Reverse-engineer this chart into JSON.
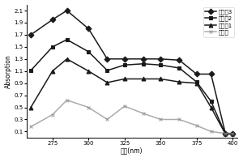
{
  "x": [
    260,
    275,
    285,
    300,
    313,
    325,
    338,
    350,
    363,
    375,
    385,
    395,
    400
  ],
  "series": {
    "实施例3": [
      1.7,
      1.95,
      2.1,
      1.8,
      1.3,
      1.3,
      1.3,
      1.3,
      1.28,
      1.05,
      1.05,
      0.07,
      0.07
    ],
    "实施例2": [
      1.11,
      1.5,
      1.62,
      1.42,
      1.11,
      1.2,
      1.22,
      1.2,
      1.15,
      0.92,
      0.6,
      0.06,
      0.06
    ],
    "实施例1": [
      0.5,
      1.1,
      1.3,
      1.1,
      0.91,
      0.97,
      0.97,
      0.97,
      0.92,
      0.9,
      0.5,
      0.06,
      0.06
    ],
    "对比例": [
      0.18,
      0.38,
      0.62,
      0.5,
      0.3,
      0.52,
      0.4,
      0.3,
      0.3,
      0.2,
      0.1,
      0.07,
      0.07
    ]
  },
  "markers": {
    "实施例3": "D",
    "实施例2": "s",
    "实施例1": "^",
    "对比例": "x"
  },
  "line_colors": {
    "实施例3": "#1a1a1a",
    "实施例2": "#1a1a1a",
    "实施例1": "#1a1a1a",
    "对比例": "#888888"
  },
  "ylabel": "Absorption",
  "xlabel": "波长(nm)",
  "xlim": [
    257,
    403
  ],
  "ylim": [
    0.0,
    2.2
  ],
  "yticks": [
    0.1,
    0.3,
    0.5,
    0.7,
    0.9,
    1.1,
    1.3,
    1.5,
    1.7,
    1.9,
    2.1
  ],
  "xticks": [
    275,
    300,
    325,
    350,
    375,
    400
  ],
  "legend_order": [
    "实施例3",
    "实施例2",
    "实施例1",
    "对比例"
  ],
  "legend_labels": [
    "实施例3",
    "实施例2",
    "实施例1",
    "对比例"
  ],
  "xlabel_display": "波长(nm)"
}
